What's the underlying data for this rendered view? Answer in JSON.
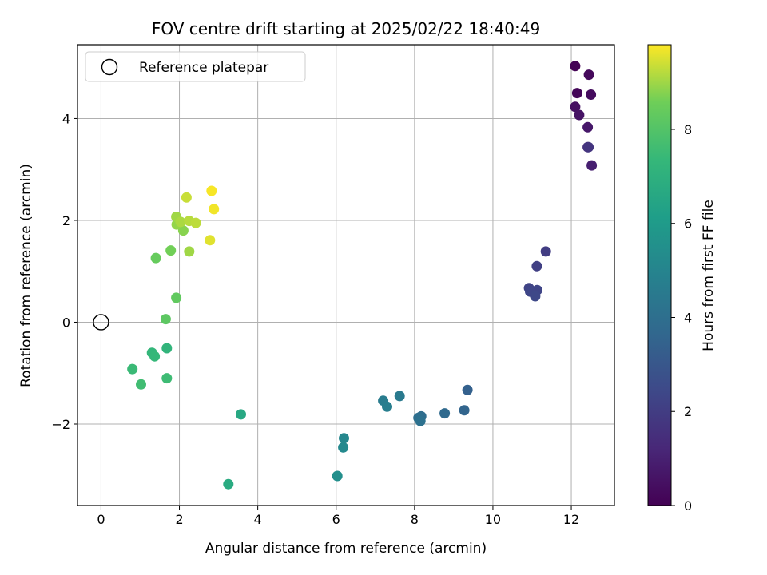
{
  "chart_data": {
    "type": "scatter",
    "title": "FOV centre drift starting at 2025/02/22 18:40:49",
    "xlabel": "Angular distance from reference (arcmin)",
    "ylabel": "Rotation from reference (arcmin)",
    "xlim": [
      -0.6,
      13.1
    ],
    "ylim": [
      -3.6,
      5.45
    ],
    "xticks": [
      0,
      2,
      4,
      6,
      8,
      10,
      12
    ],
    "yticks": [
      -2,
      0,
      2,
      4
    ],
    "grid": true,
    "legend": {
      "placement": "top-left",
      "entries": [
        "Reference platepar"
      ]
    },
    "reference_point": {
      "x": 0,
      "y": 0,
      "label": "Reference platepar"
    },
    "colorbar": {
      "label": "Hours from first FF file",
      "range": [
        0,
        9.8
      ],
      "ticks": [
        0,
        2,
        4,
        6,
        8
      ],
      "colormap": "viridis"
    },
    "points": [
      {
        "x": 12.1,
        "y": 5.03,
        "c": 0.05
      },
      {
        "x": 12.45,
        "y": 4.86,
        "c": 0.25
      },
      {
        "x": 12.15,
        "y": 4.5,
        "c": 0.15
      },
      {
        "x": 12.5,
        "y": 4.47,
        "c": 0.35
      },
      {
        "x": 12.1,
        "y": 4.23,
        "c": 0.45
      },
      {
        "x": 12.2,
        "y": 4.07,
        "c": 0.55
      },
      {
        "x": 12.42,
        "y": 3.83,
        "c": 0.7
      },
      {
        "x": 12.42,
        "y": 3.44,
        "c": 1.5
      },
      {
        "x": 12.44,
        "y": 3.44,
        "c": 1.7
      },
      {
        "x": 12.52,
        "y": 3.08,
        "c": 0.95
      },
      {
        "x": 11.35,
        "y": 1.39,
        "c": 2.0
      },
      {
        "x": 11.12,
        "y": 1.1,
        "c": 2.1
      },
      {
        "x": 10.92,
        "y": 0.67,
        "c": 2.25
      },
      {
        "x": 11.13,
        "y": 0.63,
        "c": 2.3
      },
      {
        "x": 10.95,
        "y": 0.6,
        "c": 2.35
      },
      {
        "x": 11.08,
        "y": 0.51,
        "c": 2.4
      },
      {
        "x": 9.35,
        "y": -1.33,
        "c": 3.4
      },
      {
        "x": 9.27,
        "y": -1.73,
        "c": 3.55
      },
      {
        "x": 8.77,
        "y": -1.79,
        "c": 3.75
      },
      {
        "x": 8.17,
        "y": -1.85,
        "c": 3.9
      },
      {
        "x": 8.1,
        "y": -1.88,
        "c": 4.0
      },
      {
        "x": 8.15,
        "y": -1.94,
        "c": 4.1
      },
      {
        "x": 7.62,
        "y": -1.45,
        "c": 4.5
      },
      {
        "x": 7.2,
        "y": -1.54,
        "c": 4.6
      },
      {
        "x": 7.3,
        "y": -1.66,
        "c": 4.7
      },
      {
        "x": 6.2,
        "y": -2.28,
        "c": 5.1
      },
      {
        "x": 6.18,
        "y": -2.46,
        "c": 5.2
      },
      {
        "x": 6.03,
        "y": -3.02,
        "c": 5.45
      },
      {
        "x": 3.57,
        "y": -1.81,
        "c": 6.6
      },
      {
        "x": 3.25,
        "y": -3.18,
        "c": 6.75
      },
      {
        "x": 1.68,
        "y": -0.51,
        "c": 7.2
      },
      {
        "x": 1.3,
        "y": -0.6,
        "c": 7.3
      },
      {
        "x": 1.37,
        "y": -0.67,
        "c": 7.35
      },
      {
        "x": 0.8,
        "y": -0.92,
        "c": 7.45
      },
      {
        "x": 1.68,
        "y": -1.1,
        "c": 7.55
      },
      {
        "x": 1.02,
        "y": -1.22,
        "c": 7.6
      },
      {
        "x": 1.65,
        "y": 0.06,
        "c": 8.2
      },
      {
        "x": 1.92,
        "y": 0.48,
        "c": 8.3
      },
      {
        "x": 1.4,
        "y": 1.26,
        "c": 8.4
      },
      {
        "x": 1.78,
        "y": 1.41,
        "c": 8.6
      },
      {
        "x": 2.25,
        "y": 1.39,
        "c": 9.0
      },
      {
        "x": 2.1,
        "y": 1.8,
        "c": 8.8
      },
      {
        "x": 1.93,
        "y": 1.92,
        "c": 8.9
      },
      {
        "x": 1.92,
        "y": 2.07,
        "c": 9.0
      },
      {
        "x": 2.03,
        "y": 1.97,
        "c": 9.1
      },
      {
        "x": 2.25,
        "y": 1.99,
        "c": 9.2
      },
      {
        "x": 2.42,
        "y": 1.95,
        "c": 9.25
      },
      {
        "x": 2.18,
        "y": 2.45,
        "c": 9.35
      },
      {
        "x": 2.78,
        "y": 1.61,
        "c": 9.55
      },
      {
        "x": 2.88,
        "y": 2.22,
        "c": 9.7
      },
      {
        "x": 2.82,
        "y": 2.58,
        "c": 9.75
      }
    ]
  }
}
